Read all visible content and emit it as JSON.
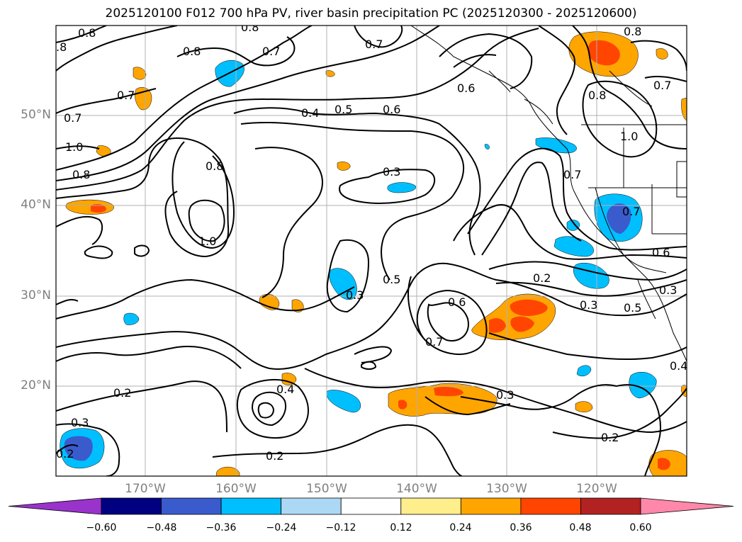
{
  "title": "2025120100 F012 700 hPa PV, river basin precipitation PC (2025120300 - 2025120600)",
  "map": {
    "latitude_labels": [
      {
        "label": "50°N",
        "lat": 50
      },
      {
        "label": "40°N",
        "lat": 40
      },
      {
        "label": "30°N",
        "lat": 30
      },
      {
        "label": "20°N",
        "lat": 20
      }
    ],
    "longitude_labels": [
      {
        "label": "170°W",
        "lon": -170
      },
      {
        "label": "160°W",
        "lon": -160
      },
      {
        "label": "150°W",
        "lon": -150
      },
      {
        "label": "140°W",
        "lon": -140
      },
      {
        "label": "130°W",
        "lon": -130
      },
      {
        "label": "120°W",
        "lon": -120
      }
    ],
    "extent": {
      "lon_min": -180,
      "lon_max": -110,
      "lat_min": 10,
      "lat_max": 60
    },
    "contour_labels": [
      "0.8",
      "0.8",
      "0.8",
      "0.7",
      "0.7",
      "0.7",
      "0.8",
      "0.6",
      "0.7",
      "0.4",
      "0.5",
      "0.6",
      "1.0",
      "0.8",
      "0.8",
      "0.3",
      "1.0",
      "0.7",
      "1.0",
      "0.7",
      "0.6",
      "0.2",
      "0.5",
      "0.3",
      "0.3",
      "0.6",
      "0.7",
      "0.5",
      "0.3",
      "0.2",
      "0.4",
      "0.3",
      "0.3",
      "0.2",
      "0.2",
      "0.4",
      "0.2",
      "0.3"
    ]
  },
  "colorbar": {
    "ticks": [
      "−0.60",
      "−0.48",
      "−0.36",
      "−0.24",
      "−0.12",
      "0.12",
      "0.24",
      "0.36",
      "0.48",
      "0.60"
    ],
    "colors": [
      "#9933cc",
      "#000080",
      "#3a5bcc",
      "#00bfff",
      "#add8f5",
      "#ffffff",
      "#ffee8c",
      "#ffa500",
      "#ff4500",
      "#b22222",
      "#ff88aa"
    ]
  }
}
